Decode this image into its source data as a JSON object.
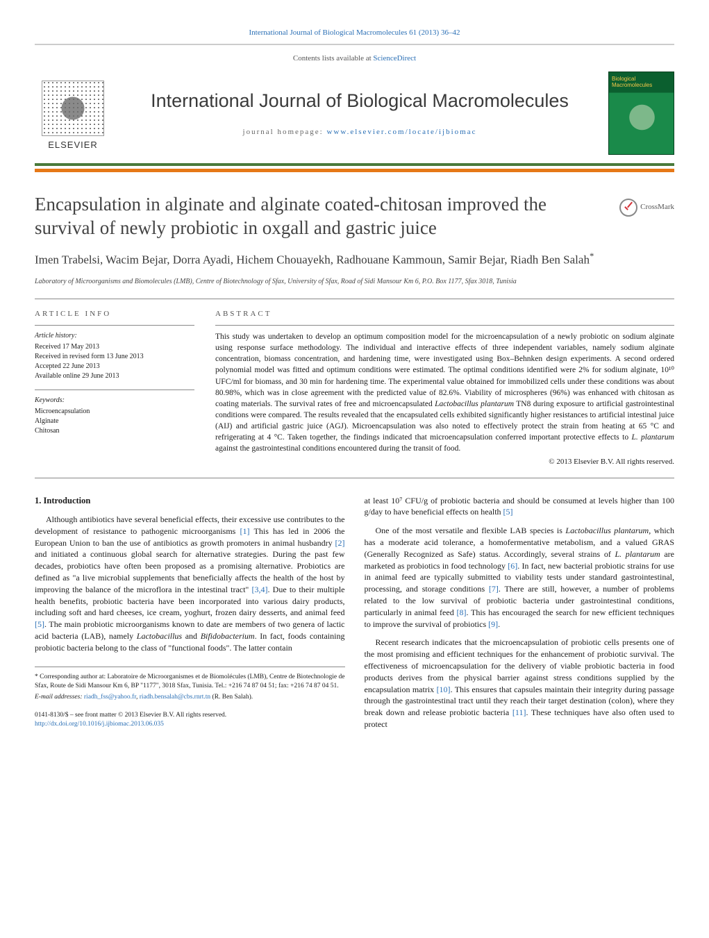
{
  "header": {
    "top_link_text": "International Journal of Biological Macromolecules 61 (2013) 36–42",
    "contents_prefix": "Contents lists available at ",
    "contents_link": "ScienceDirect",
    "journal_title": "International Journal of Biological Macromolecules",
    "homepage_prefix": "journal homepage: ",
    "homepage_link": "www.elsevier.com/locate/ijbiomac",
    "elsevier_label": "ELSEVIER",
    "cover_label_line1": "Biological",
    "cover_label_line2": "Macromolecules",
    "crossmark_label": "CrossMark"
  },
  "article": {
    "title": "Encapsulation in alginate and alginate coated-chitosan improved the survival of newly probiotic in oxgall and gastric juice",
    "authors": "Imen Trabelsi, Wacim Bejar, Dorra Ayadi, Hichem Chouayekh, Radhouane Kammoun, Samir Bejar, Riadh Ben Salah",
    "corr_marker": "*",
    "affiliation": "Laboratory of Microorganisms and Biomolecules (LMB), Centre of Biotechnology of Sfax, University of Sfax, Road of Sidi Mansour Km 6, P.O. Box 1177, Sfax 3018, Tunisia"
  },
  "info": {
    "heading": "ARTICLE INFO",
    "history_label": "Article history:",
    "history": [
      "Received 17 May 2013",
      "Received in revised form 13 June 2013",
      "Accepted 22 June 2013",
      "Available online 29 June 2013"
    ],
    "keywords_label": "Keywords:",
    "keywords": [
      "Microencapsulation",
      "Alginate",
      "Chitosan"
    ]
  },
  "abstract": {
    "heading": "ABSTRACT",
    "text": "This study was undertaken to develop an optimum composition model for the microencapsulation of a newly probiotic on sodium alginate using response surface methodology. The individual and interactive effects of three independent variables, namely sodium alginate concentration, biomass concentration, and hardening time, were investigated using Box–Behnken design experiments. A second ordered polynomial model was fitted and optimum conditions were estimated. The optimal conditions identified were 2% for sodium alginate, 10¹⁰ UFC/ml for biomass, and 30 min for hardening time. The experimental value obtained for immobilized cells under these conditions was about 80.98%, which was in close agreement with the predicted value of 82.6%. Viability of microspheres (96%) was enhanced with chitosan as coating materials. The survival rates of free and microencapsulated Lactobacillus plantarum TN8 during exposure to artificial gastrointestinal conditions were compared. The results revealed that the encapsulated cells exhibited significantly higher resistances to artificial intestinal juice (AIJ) and artificial gastric juice (AGJ). Microencapsulation was also noted to effectively protect the strain from heating at 65 °C and refrigerating at 4 °C. Taken together, the findings indicated that microencapsulation conferred important protective effects to L. plantarum against the gastrointestinal conditions encountered during the transit of food.",
    "copyright": "© 2013 Elsevier B.V. All rights reserved."
  },
  "body": {
    "intro_heading": "1.  Introduction",
    "left_paras": [
      "Although antibiotics have several beneficial effects, their excessive use contributes to the development of resistance to pathogenic microorganisms [1] This has led in 2006 the European Union to ban the use of antibiotics as growth promoters in animal husbandry [2] and initiated a continuous global search for alternative strategies. During the past few decades, probiotics have often been proposed as a promising alternative. Probiotics are defined as \"a live microbial supplements that beneficially affects the health of the host by improving the balance of the microflora in the intestinal tract\" [3,4]. Due to their multiple health benefits, probiotic bacteria have been incorporated into various dairy products, including soft and hard cheeses, ice cream, yoghurt, frozen dairy desserts, and animal feed [5]. The main probiotic microorganisms known to date are members of two genera of lactic acid bacteria (LAB), namely Lactobacillus and Bifidobacterium. In fact, foods containing probiotic bacteria belong to the class of \"functional foods\". The latter contain"
    ],
    "right_paras": [
      "at least 10⁷ CFU/g of probiotic bacteria and should be consumed at levels higher than 100 g/day to have beneficial effects on health [5]",
      "One of the most versatile and flexible LAB species is Lactobacillus plantarum, which has a moderate acid tolerance, a homofermentative metabolism, and a valued GRAS (Generally Recognized as Safe) status. Accordingly, several strains of L. plantarum are marketed as probiotics in food technology [6]. In fact, new bacterial probiotic strains for use in animal feed are typically submitted to viability tests under standard gastrointestinal, processing, and storage conditions [7]. There are still, however, a number of problems related to the low survival of probiotic bacteria under gastrointestinal conditions, particularly in animal feed [8]. This has encouraged the search for new efficient techniques to improve the survival of probiotics [9].",
      "Recent research indicates that the microencapsulation of probiotic cells presents one of the most promising and efficient techniques for the enhancement of probiotic survival. The effectiveness of microencapsulation for the delivery of viable probiotic bacteria in food products derives from the physical barrier against stress conditions supplied by the encapsulation matrix [10]. This ensures that capsules maintain their integrity during passage through the gastrointestinal tract until they reach their target destination (colon), where they break down and release probiotic bacteria [11]. These techniques have also often used to protect"
    ]
  },
  "footnotes": {
    "corr": "* Corresponding author at: Laboratoire de Microorganismes et de Biomolécules (LMB), Centre de Biotechnologie de Sfax, Route de Sidi Mansour Km 6, BP \"1177\", 3018 Sfax, Tunisia. Tel.: +216 74 87 04 51; fax: +216 74 87 04 51.",
    "email_label": "E-mail addresses: ",
    "email1": "riadh_fss@yahoo.fr",
    "email_sep": ", ",
    "email2": "riadh.bensalah@cbs.rnrt.tn",
    "email_suffix": " (R. Ben Salah).",
    "issn": "0141-8130/$ – see front matter © 2013 Elsevier B.V. All rights reserved.",
    "doi": "http://dx.doi.org/10.1016/j.ijbiomac.2013.06.035"
  },
  "colors": {
    "link": "#2a6fb5",
    "orange_bar": "#e67817",
    "green_border": "#4a7a3a",
    "cover_dark": "#0b5f2f",
    "cover_light": "#1a8a4a",
    "cover_gold": "#f5c84a"
  }
}
